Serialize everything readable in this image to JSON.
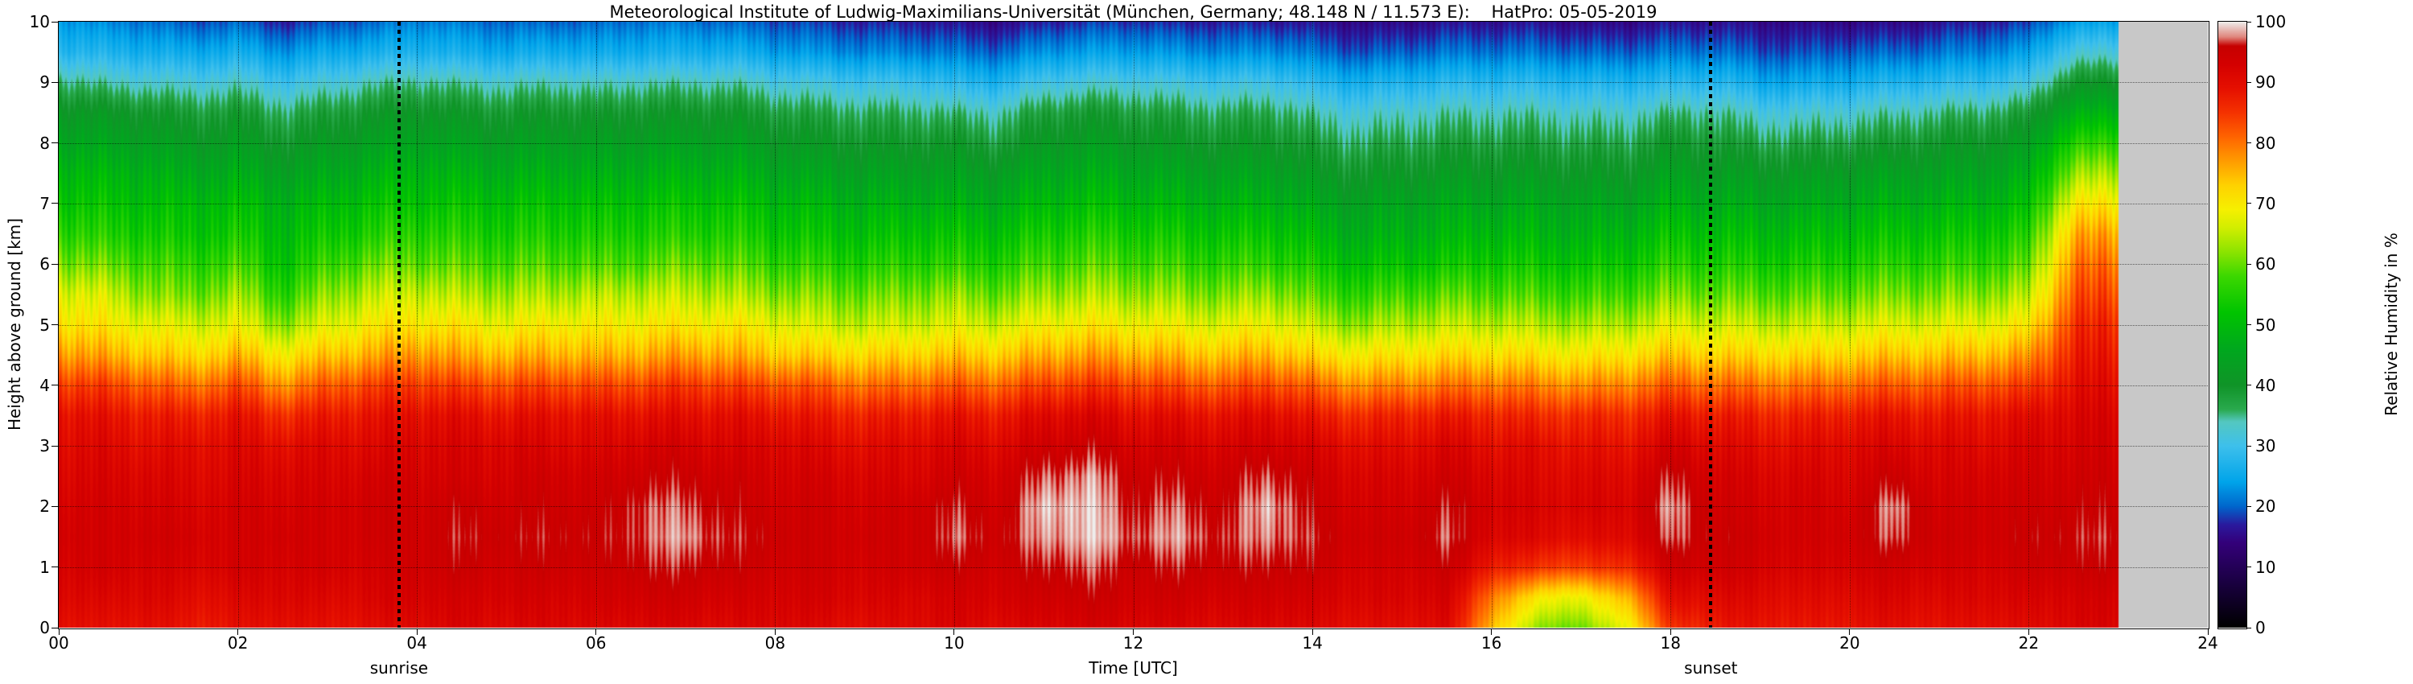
{
  "title": "Meteorological Institute of Ludwig-Maximilians-Universität (München, Germany; 48.148 N / 11.573 E):    HatPro: 05-05-2019",
  "axes": {
    "xlabel": "Time [UTC]",
    "ylabel": "Height above ground [km]"
  },
  "x_tick_labels": [
    "00",
    "02",
    "04",
    "06",
    "08",
    "10",
    "12",
    "14",
    "16",
    "18",
    "20",
    "22",
    "24"
  ],
  "y_tick_labels": [
    "0",
    "1",
    "2",
    "3",
    "4",
    "5",
    "6",
    "7",
    "8",
    "9",
    "10"
  ],
  "colorbar": {
    "label": "Relative Humidity in %",
    "tick_labels": [
      "0",
      "10",
      "20",
      "30",
      "40",
      "50",
      "60",
      "70",
      "80",
      "90",
      "100"
    ]
  },
  "annotations": {
    "sunrise": {
      "label": "sunrise",
      "time_utc": 3.8
    },
    "sunset": {
      "label": "sunset",
      "time_utc": 18.45
    }
  },
  "chart_data": {
    "type": "heatmap",
    "title": "Meteorological Institute of Ludwig-Maximilians-Universität (München, Germany; 48.148 N / 11.573 E):    HatPro: 05-05-2019",
    "xlabel": "Time [UTC]",
    "ylabel": "Height above ground [km]",
    "value_label": "Relative Humidity in %",
    "x_range": [
      0,
      24
    ],
    "y_range": [
      0,
      10
    ],
    "value_range": [
      0,
      100
    ],
    "no_data_after_hour": 23,
    "no_data_color": "#c8c8c8",
    "x_hours_utc": [
      0,
      0.5,
      1,
      1.5,
      2,
      2.5,
      3,
      3.5,
      4,
      4.5,
      5,
      5.5,
      6,
      6.5,
      7,
      7.5,
      8,
      8.5,
      9,
      9.5,
      10,
      10.5,
      11,
      11.5,
      12,
      12.5,
      13,
      13.5,
      14,
      14.5,
      15,
      15.5,
      16,
      16.5,
      17,
      17.5,
      18,
      18.5,
      19,
      19.5,
      20,
      20.5,
      21,
      21.5,
      22,
      22.5
    ],
    "y_height_km": [
      0,
      0.5,
      1,
      1.5,
      2,
      2.5,
      3,
      3.5,
      4,
      4.5,
      5,
      5.5,
      6,
      6.5,
      7,
      7.5,
      8,
      8.5,
      9,
      9.5,
      10
    ],
    "rh_percent": [
      [
        90,
        92,
        93,
        94,
        93,
        92,
        91,
        90,
        85,
        78,
        72,
        68,
        62,
        57,
        53,
        50,
        46,
        42,
        36,
        28,
        24
      ],
      [
        89,
        91,
        93,
        93,
        93,
        92,
        91,
        89,
        84,
        76,
        70,
        66,
        60,
        55,
        52,
        49,
        45,
        41,
        34,
        27,
        22
      ],
      [
        90,
        92,
        93,
        94,
        93,
        92,
        90,
        88,
        82,
        74,
        68,
        62,
        58,
        54,
        51,
        48,
        44,
        40,
        33,
        26,
        21
      ],
      [
        88,
        90,
        92,
        93,
        92,
        91,
        90,
        87,
        80,
        72,
        66,
        60,
        56,
        52,
        50,
        46,
        42,
        38,
        32,
        25,
        19
      ],
      [
        89,
        91,
        93,
        93,
        93,
        92,
        91,
        89,
        83,
        75,
        68,
        63,
        58,
        54,
        51,
        47,
        43,
        39,
        33,
        26,
        20
      ],
      [
        90,
        92,
        93,
        94,
        93,
        92,
        90,
        86,
        78,
        70,
        62,
        56,
        52,
        50,
        48,
        44,
        40,
        36,
        30,
        23,
        17
      ],
      [
        89,
        91,
        93,
        93,
        93,
        92,
        91,
        88,
        82,
        74,
        67,
        62,
        57,
        53,
        50,
        46,
        42,
        38,
        32,
        25,
        19
      ],
      [
        90,
        92,
        93,
        94,
        94,
        93,
        91,
        89,
        84,
        76,
        70,
        65,
        60,
        55,
        52,
        48,
        44,
        40,
        34,
        26,
        20
      ],
      [
        91,
        93,
        94,
        94,
        94,
        93,
        92,
        90,
        85,
        78,
        71,
        66,
        60,
        56,
        52,
        49,
        45,
        41,
        35,
        27,
        22
      ],
      [
        92,
        93,
        95,
        96,
        95,
        93,
        92,
        90,
        84,
        76,
        70,
        64,
        59,
        55,
        52,
        48,
        44,
        40,
        34,
        26,
        21
      ],
      [
        91,
        93,
        94,
        95,
        94,
        93,
        92,
        89,
        83,
        75,
        68,
        63,
        58,
        54,
        51,
        47,
        43,
        39,
        33,
        25,
        20
      ],
      [
        92,
        93,
        95,
        96,
        95,
        94,
        92,
        90,
        84,
        76,
        70,
        64,
        59,
        55,
        52,
        48,
        44,
        40,
        34,
        26,
        20
      ],
      [
        91,
        93,
        94,
        95,
        94,
        93,
        91,
        89,
        83,
        75,
        69,
        64,
        58,
        54,
        51,
        47,
        43,
        39,
        33,
        25,
        20
      ],
      [
        92,
        94,
        96,
        97,
        97,
        95,
        93,
        90,
        84,
        76,
        70,
        65,
        59,
        55,
        52,
        48,
        44,
        40,
        34,
        26,
        21
      ],
      [
        92,
        94,
        96,
        98,
        97,
        95,
        93,
        90,
        85,
        77,
        70,
        65,
        60,
        55,
        52,
        48,
        44,
        40,
        34,
        26,
        21
      ],
      [
        91,
        93,
        95,
        96,
        95,
        94,
        92,
        90,
        84,
        76,
        70,
        64,
        59,
        55,
        52,
        48,
        44,
        40,
        34,
        26,
        20
      ],
      [
        92,
        93,
        94,
        95,
        94,
        93,
        92,
        89,
        83,
        74,
        68,
        62,
        57,
        53,
        50,
        46,
        42,
        38,
        32,
        24,
        19
      ],
      [
        91,
        93,
        94,
        94,
        94,
        93,
        91,
        88,
        82,
        73,
        66,
        61,
        56,
        52,
        49,
        45,
        41,
        37,
        31,
        23,
        18
      ],
      [
        90,
        92,
        93,
        94,
        93,
        92,
        90,
        87,
        80,
        72,
        65,
        60,
        55,
        51,
        48,
        44,
        40,
        36,
        30,
        22,
        17
      ],
      [
        91,
        92,
        94,
        94,
        94,
        92,
        91,
        88,
        81,
        73,
        66,
        61,
        56,
        52,
        48,
        44,
        40,
        36,
        30,
        22,
        17
      ],
      [
        92,
        93,
        95,
        97,
        96,
        94,
        92,
        89,
        82,
        74,
        67,
        62,
        56,
        52,
        48,
        44,
        40,
        35,
        28,
        21,
        16
      ],
      [
        91,
        93,
        94,
        95,
        94,
        93,
        91,
        88,
        81,
        73,
        66,
        60,
        55,
        51,
        47,
        43,
        38,
        34,
        27,
        20,
        15
      ],
      [
        92,
        94,
        96,
        98,
        99,
        97,
        94,
        91,
        84,
        76,
        69,
        63,
        58,
        54,
        50,
        46,
        42,
        38,
        31,
        23,
        17
      ],
      [
        93,
        95,
        97,
        99,
        99,
        98,
        95,
        92,
        85,
        77,
        70,
        64,
        59,
        55,
        51,
        47,
        43,
        39,
        32,
        24,
        18
      ],
      [
        92,
        94,
        95,
        97,
        96,
        95,
        93,
        90,
        84,
        76,
        69,
        63,
        58,
        54,
        50,
        46,
        42,
        38,
        32,
        24,
        18
      ],
      [
        92,
        94,
        96,
        98,
        97,
        95,
        93,
        90,
        83,
        75,
        68,
        62,
        57,
        53,
        49,
        45,
        41,
        37,
        31,
        23,
        17
      ],
      [
        91,
        93,
        95,
        96,
        95,
        94,
        92,
        89,
        82,
        74,
        67,
        61,
        56,
        52,
        48,
        44,
        40,
        36,
        30,
        22,
        17
      ],
      [
        92,
        94,
        96,
        98,
        99,
        97,
        94,
        91,
        84,
        76,
        69,
        63,
        57,
        53,
        49,
        45,
        41,
        37,
        31,
        23,
        17
      ],
      [
        91,
        93,
        95,
        96,
        95,
        94,
        92,
        88,
        81,
        72,
        65,
        59,
        54,
        50,
        46,
        42,
        38,
        34,
        28,
        21,
        16
      ],
      [
        90,
        92,
        93,
        94,
        93,
        92,
        90,
        86,
        78,
        70,
        62,
        56,
        51,
        47,
        44,
        40,
        36,
        32,
        26,
        19,
        15
      ],
      [
        90,
        92,
        93,
        94,
        93,
        92,
        90,
        87,
        79,
        71,
        64,
        58,
        52,
        48,
        45,
        41,
        37,
        33,
        27,
        20,
        15
      ],
      [
        91,
        93,
        95,
        97,
        96,
        94,
        92,
        88,
        80,
        72,
        65,
        59,
        53,
        49,
        46,
        42,
        38,
        34,
        28,
        21,
        16
      ],
      [
        75,
        80,
        88,
        92,
        93,
        92,
        90,
        87,
        80,
        72,
        65,
        59,
        54,
        50,
        46,
        42,
        38,
        34,
        28,
        21,
        16
      ],
      [
        62,
        70,
        85,
        91,
        92,
        91,
        90,
        86,
        79,
        71,
        64,
        58,
        53,
        49,
        46,
        42,
        38,
        34,
        28,
        21,
        16
      ],
      [
        60,
        68,
        84,
        90,
        92,
        91,
        89,
        86,
        78,
        70,
        63,
        57,
        52,
        48,
        45,
        41,
        37,
        33,
        27,
        20,
        15
      ],
      [
        68,
        75,
        86,
        91,
        92,
        91,
        89,
        86,
        79,
        71,
        64,
        58,
        53,
        49,
        45,
        41,
        37,
        33,
        27,
        20,
        15
      ],
      [
        85,
        90,
        94,
        97,
        98,
        96,
        93,
        89,
        82,
        74,
        67,
        61,
        56,
        52,
        48,
        44,
        40,
        35,
        28,
        21,
        16
      ],
      [
        88,
        91,
        94,
        95,
        94,
        93,
        91,
        88,
        81,
        73,
        66,
        60,
        55,
        51,
        47,
        43,
        39,
        35,
        28,
        21,
        16
      ],
      [
        89,
        91,
        93,
        94,
        93,
        92,
        90,
        87,
        80,
        72,
        65,
        59,
        54,
        50,
        46,
        42,
        37,
        32,
        25,
        19,
        15
      ],
      [
        88,
        90,
        92,
        93,
        93,
        92,
        90,
        87,
        80,
        72,
        65,
        59,
        54,
        50,
        46,
        42,
        37,
        32,
        25,
        19,
        15
      ],
      [
        89,
        91,
        93,
        94,
        93,
        92,
        91,
        88,
        81,
        73,
        66,
        60,
        55,
        51,
        47,
        43,
        38,
        33,
        26,
        20,
        15
      ],
      [
        90,
        92,
        94,
        97,
        98,
        95,
        92,
        89,
        82,
        74,
        67,
        61,
        56,
        52,
        48,
        44,
        39,
        34,
        27,
        20,
        15
      ],
      [
        89,
        91,
        93,
        94,
        93,
        92,
        91,
        88,
        82,
        74,
        67,
        61,
        56,
        52,
        48,
        44,
        40,
        35,
        28,
        21,
        16
      ],
      [
        90,
        92,
        93,
        94,
        94,
        93,
        91,
        89,
        83,
        75,
        68,
        62,
        57,
        53,
        49,
        45,
        41,
        36,
        29,
        22,
        17
      ],
      [
        90,
        92,
        94,
        95,
        94,
        93,
        92,
        90,
        84,
        77,
        70,
        64,
        59,
        55,
        51,
        47,
        43,
        38,
        31,
        24,
        18
      ],
      [
        92,
        93,
        95,
        96,
        95,
        94,
        93,
        92,
        90,
        88,
        86,
        83,
        80,
        76,
        70,
        63,
        56,
        48,
        40,
        32,
        24
      ]
    ],
    "colormap_stops": [
      [
        0,
        "#000000"
      ],
      [
        8,
        "#1c0046"
      ],
      [
        14,
        "#34007a"
      ],
      [
        17,
        "#2a1a9e"
      ],
      [
        20,
        "#0066cc"
      ],
      [
        24,
        "#00a4ea"
      ],
      [
        30,
        "#3ec0ec"
      ],
      [
        34,
        "#54c8c0"
      ],
      [
        36,
        "#2aaa4e"
      ],
      [
        40,
        "#109428"
      ],
      [
        46,
        "#00a81e"
      ],
      [
        52,
        "#00c400"
      ],
      [
        58,
        "#3cd800"
      ],
      [
        62,
        "#8ce400"
      ],
      [
        66,
        "#d2ee00"
      ],
      [
        69,
        "#f6f000"
      ],
      [
        73,
        "#ffd200"
      ],
      [
        77,
        "#ff9c00"
      ],
      [
        81,
        "#ff6400"
      ],
      [
        85,
        "#f53200"
      ],
      [
        89,
        "#e61000"
      ],
      [
        93,
        "#d40000"
      ],
      [
        96,
        "#c60000"
      ],
      [
        97.5,
        "#e0877e"
      ],
      [
        100,
        "#eeeeec"
      ]
    ]
  }
}
